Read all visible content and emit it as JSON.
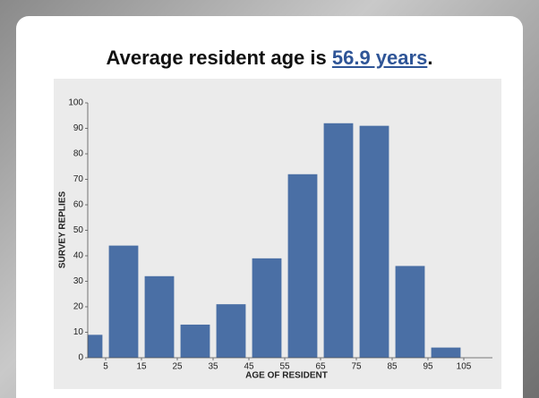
{
  "chart_data": {
    "type": "histogram",
    "title_parts": [
      "Average resident age is",
      "56.9 years",
      "."
    ],
    "xlabel": "AGE OF RESIDENT",
    "ylabel": "SURVEY REPLIES",
    "bins": [
      -5,
      5,
      15,
      25,
      35,
      45,
      55,
      65,
      75,
      85,
      95,
      105
    ],
    "values": [
      9,
      44,
      32,
      13,
      21,
      39,
      72,
      92,
      91,
      36,
      4
    ],
    "color": "#4a6fa5",
    "xlim": [
      0,
      113
    ],
    "ylim": [
      0,
      100
    ],
    "xticks": [
      5,
      15,
      25,
      35,
      45,
      55,
      65,
      75,
      85,
      95,
      105
    ],
    "yticks": [
      0,
      10,
      20,
      30,
      40,
      50,
      60,
      70,
      80,
      90,
      100
    ]
  }
}
